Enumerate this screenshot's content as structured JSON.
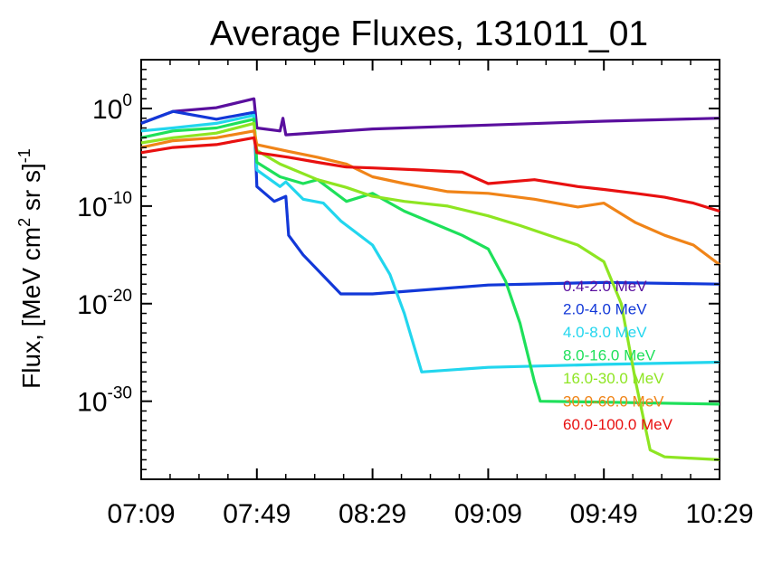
{
  "chart_data": {
    "type": "line",
    "title": "Average Fluxes, 131011_01",
    "xlabel": "",
    "ylabel": {
      "pre": "Flux, [MeV cm",
      "sup1": "2",
      "mid": " sr s]",
      "sup2": "-1"
    },
    "xscale": "time",
    "yscale": "log",
    "xlim": [
      "07:09",
      "10:29"
    ],
    "ylim": [
      1e-38,
      100000.0
    ],
    "x_ticks": [
      "07:09",
      "07:49",
      "08:29",
      "09:09",
      "09:49",
      "10:29"
    ],
    "y_ticks": [
      {
        "value": 1,
        "base": "10",
        "exp": "0"
      },
      {
        "value": 1e-10,
        "base": "10",
        "exp": "-10"
      },
      {
        "value": 1e-20,
        "base": "10",
        "exp": "-20"
      },
      {
        "value": 1e-30,
        "base": "10",
        "exp": "-30"
      }
    ],
    "legend_position": "bottom-right",
    "series": [
      {
        "name": "0.4-2.0 MeV",
        "color": "#5a0f9e",
        "points": [
          [
            "07:09",
            0.03
          ],
          [
            "07:20",
            0.5
          ],
          [
            "07:35",
            1.2
          ],
          [
            "07:48",
            10
          ],
          [
            "07:49",
            0.01
          ],
          [
            "07:57",
            0.005
          ],
          [
            "07:58",
            0.1
          ],
          [
            "07:59",
            0.002
          ],
          [
            "08:29",
            0.008
          ],
          [
            "09:09",
            0.02
          ],
          [
            "09:49",
            0.05
          ],
          [
            "10:29",
            0.1
          ]
        ]
      },
      {
        "name": "2.0-4.0 MeV",
        "color": "#1238d8",
        "points": [
          [
            "07:09",
            0.03
          ],
          [
            "07:20",
            0.5
          ],
          [
            "07:35",
            0.08
          ],
          [
            "07:48",
            0.4
          ],
          [
            "07:49",
            1e-08
          ],
          [
            "07:55",
            3e-10
          ],
          [
            "07:59",
            1e-09
          ],
          [
            "08:00",
            1e-13
          ],
          [
            "08:05",
            1e-15
          ],
          [
            "08:18",
            1e-19
          ],
          [
            "08:29",
            1e-19
          ],
          [
            "09:09",
            8e-19
          ],
          [
            "09:49",
            1.5e-18
          ],
          [
            "10:29",
            1e-18
          ]
        ]
      },
      {
        "name": "4.0-8.0 MeV",
        "color": "#22d6ee",
        "points": [
          [
            "07:09",
            0.005
          ],
          [
            "07:20",
            0.01
          ],
          [
            "07:35",
            0.03
          ],
          [
            "07:48",
            0.2
          ],
          [
            "07:49",
            5e-07
          ],
          [
            "07:57",
            1e-08
          ],
          [
            "07:59",
            3e-08
          ],
          [
            "08:05",
            5e-10
          ],
          [
            "08:12",
            2e-10
          ],
          [
            "08:18",
            3e-12
          ],
          [
            "08:29",
            1e-14
          ],
          [
            "08:35",
            1e-17
          ],
          [
            "08:40",
            1e-21
          ],
          [
            "08:44",
            1e-25
          ],
          [
            "08:46",
            1e-27
          ],
          [
            "09:09",
            3e-27
          ],
          [
            "09:49",
            6e-27
          ],
          [
            "10:29",
            1e-26
          ]
        ]
      },
      {
        "name": "8.0-16.0 MeV",
        "color": "#1ee05a",
        "points": [
          [
            "07:09",
            0.001
          ],
          [
            "07:20",
            0.005
          ],
          [
            "07:35",
            0.01
          ],
          [
            "07:48",
            0.08
          ],
          [
            "07:49",
            3e-06
          ],
          [
            "07:57",
            1e-07
          ],
          [
            "08:05",
            2e-08
          ],
          [
            "08:10",
            5e-08
          ],
          [
            "08:20",
            3e-10
          ],
          [
            "08:29",
            2e-09
          ],
          [
            "08:40",
            3e-11
          ],
          [
            "09:00",
            1e-13
          ],
          [
            "09:09",
            4e-15
          ],
          [
            "09:15",
            2e-18
          ],
          [
            "09:20",
            1e-22
          ],
          [
            "09:25",
            1e-28
          ],
          [
            "09:27",
            1e-30
          ],
          [
            "09:49",
            8e-31
          ],
          [
            "10:29",
            5e-31
          ]
        ]
      },
      {
        "name": "16.0-30.0 MeV",
        "color": "#8ee522",
        "points": [
          [
            "07:09",
            0.0003
          ],
          [
            "07:20",
            0.001
          ],
          [
            "07:35",
            0.003
          ],
          [
            "07:48",
            0.03
          ],
          [
            "07:49",
            5e-05
          ],
          [
            "07:57",
            2e-06
          ],
          [
            "08:10",
            5e-08
          ],
          [
            "08:20",
            8e-09
          ],
          [
            "08:29",
            1e-09
          ],
          [
            "08:40",
            3e-10
          ],
          [
            "08:55",
            1e-10
          ],
          [
            "09:09",
            1e-11
          ],
          [
            "09:20",
            1e-12
          ],
          [
            "09:40",
            1e-14
          ],
          [
            "09:49",
            2e-16
          ],
          [
            "09:55",
            1e-20
          ],
          [
            "10:00",
            1e-28
          ],
          [
            "10:05",
            1e-35
          ],
          [
            "10:10",
            2e-36
          ],
          [
            "10:29",
            1e-36
          ]
        ]
      },
      {
        "name": "30.0-60.0 MeV",
        "color": "#f08418",
        "points": [
          [
            "07:09",
            0.0001
          ],
          [
            "07:20",
            0.0005
          ],
          [
            "07:35",
            0.001
          ],
          [
            "07:48",
            0.005
          ],
          [
            "07:49",
            0.0002
          ],
          [
            "08:00",
            4e-05
          ],
          [
            "08:10",
            1e-05
          ],
          [
            "08:20",
            2e-06
          ],
          [
            "08:29",
            1e-07
          ],
          [
            "08:40",
            2e-08
          ],
          [
            "08:55",
            3e-09
          ],
          [
            "09:09",
            2e-09
          ],
          [
            "09:25",
            5e-10
          ],
          [
            "09:40",
            8e-11
          ],
          [
            "09:49",
            2e-10
          ],
          [
            "10:00",
            2e-12
          ],
          [
            "10:10",
            1e-13
          ],
          [
            "10:20",
            1e-14
          ],
          [
            "10:29",
            1e-16
          ]
        ]
      },
      {
        "name": "60.0-100.0 MeV",
        "color": "#e81010",
        "points": [
          [
            "07:09",
            3e-05
          ],
          [
            "07:20",
            0.0001
          ],
          [
            "07:35",
            0.0002
          ],
          [
            "07:48",
            0.001
          ],
          [
            "07:49",
            3e-05
          ],
          [
            "08:00",
            1e-05
          ],
          [
            "08:10",
            3e-06
          ],
          [
            "08:20",
            1e-06
          ],
          [
            "08:29",
            8e-07
          ],
          [
            "08:45",
            5e-07
          ],
          [
            "09:00",
            3e-07
          ],
          [
            "09:09",
            2e-08
          ],
          [
            "09:25",
            5e-08
          ],
          [
            "09:40",
            1e-08
          ],
          [
            "09:49",
            5e-09
          ],
          [
            "10:00",
            2e-09
          ],
          [
            "10:10",
            8e-10
          ],
          [
            "10:20",
            2e-10
          ],
          [
            "10:29",
            3e-11
          ]
        ]
      }
    ]
  }
}
